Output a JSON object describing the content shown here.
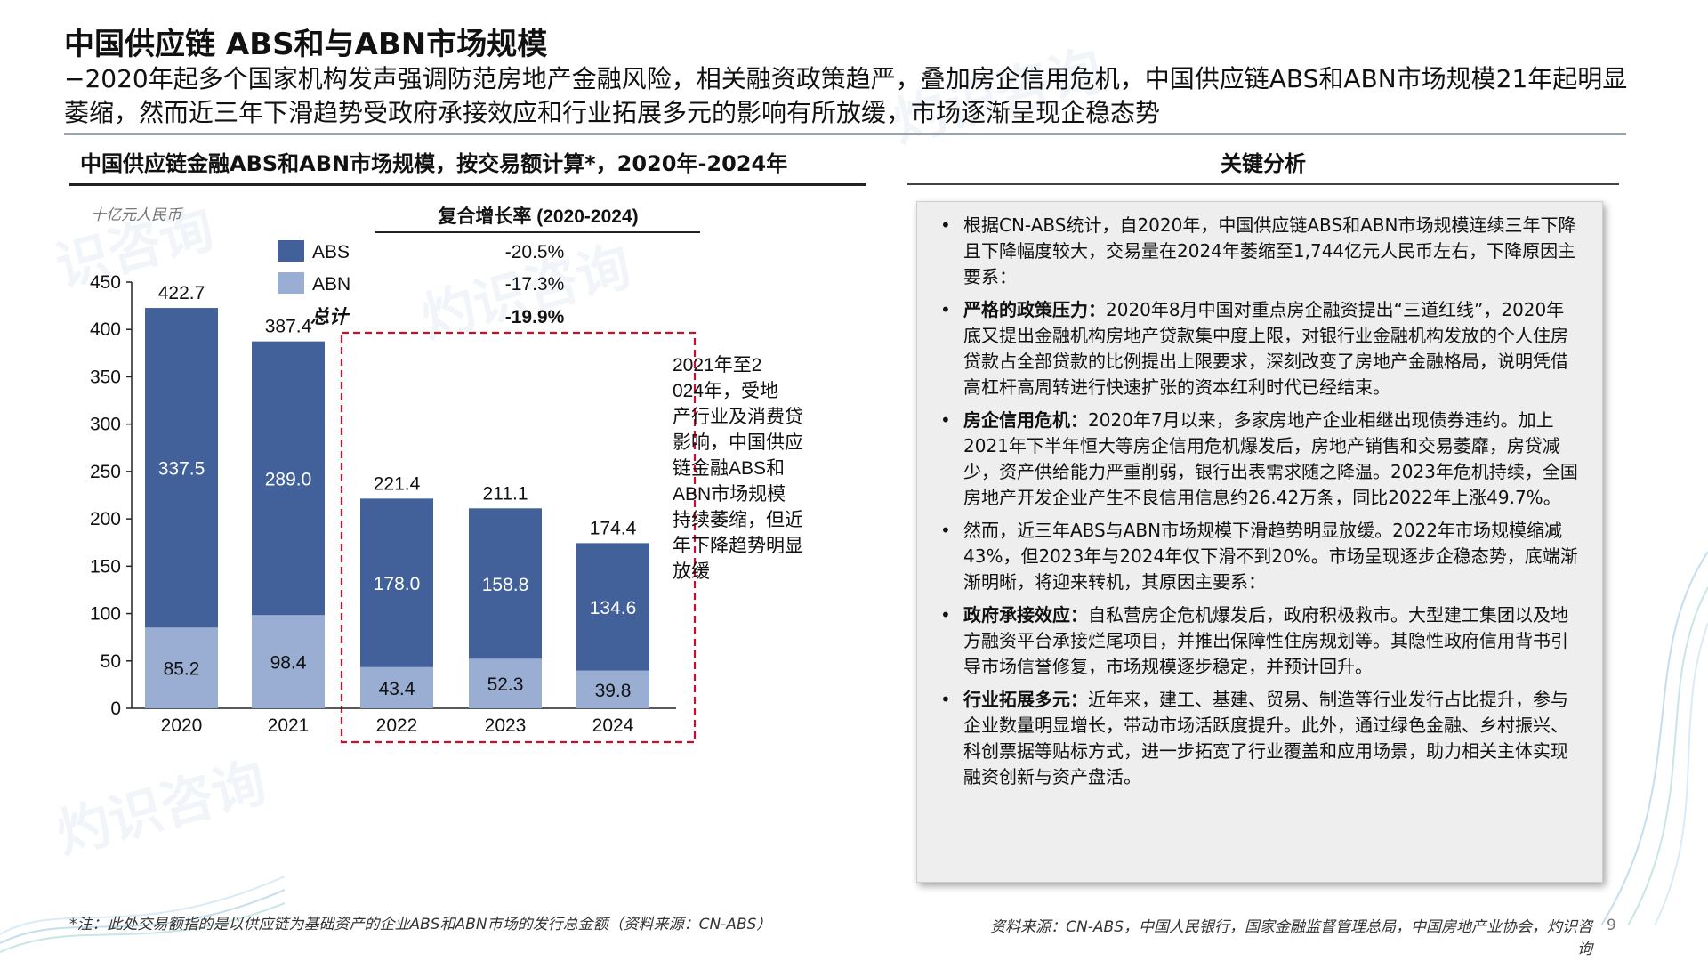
{
  "slide": {
    "title": "中国供应链 ABS和与ABN市场规模",
    "subtitle": "−2020年起多个国家机构发声强调防范房地产金融风险，相关融资政策趋严，叠加房企信用危机，中国供应链ABS和ABN市场规模21年起明显萎缩，然而近三年下滑趋势受政府承接效应和行业拓展多元的影响有所放缓，市场逐渐呈现企稳态势",
    "page_number": "9"
  },
  "colors": {
    "abs": "#42619a",
    "abn": "#9aaed4",
    "highlight_border": "#c8102e",
    "header_rule": "#9aa3ad"
  },
  "chart_panel": {
    "heading": "中国供应链金融ABS和ABN市场规模，按交易额计算*，2020年-2024年",
    "unit": "十亿元人民币",
    "cagr_header": "复合增长率 (2020-2024)",
    "legend": [
      {
        "name": "ABS",
        "cagr": "-20.5%"
      },
      {
        "name": "ABN",
        "cagr": "-17.3%"
      }
    ],
    "total_label": "总计",
    "total_cagr": "-19.9%",
    "annotation": "2021年至2024年，受地产行业及消费贷影响，中国供应链金融ABS和ABN市场规模持续萎缩，但近年下降趋势明显放缓"
  },
  "chart_data": {
    "type": "bar",
    "stacked": true,
    "categories": [
      "2020",
      "2021",
      "2022",
      "2023",
      "2024"
    ],
    "series": [
      {
        "name": "ABN",
        "values": [
          85.2,
          98.4,
          43.4,
          52.3,
          39.8
        ]
      },
      {
        "name": "ABS",
        "values": [
          337.5,
          289.0,
          178.0,
          158.8,
          134.6
        ]
      }
    ],
    "totals": [
      422.7,
      387.4,
      221.4,
      211.1,
      174.4
    ],
    "ylim": [
      0,
      450
    ],
    "yticks": [
      0,
      50,
      100,
      150,
      200,
      250,
      300,
      350,
      400,
      450
    ],
    "ylabel": "十亿元人民币",
    "title": "中国供应链金融ABS和ABN市场规模，按交易额计算*，2020年-2024年",
    "highlight_categories": [
      "2022",
      "2023",
      "2024"
    ]
  },
  "analysis": {
    "heading": "关键分析",
    "items": [
      {
        "label": "",
        "text": "根据CN-ABS统计，自2020年，中国供应链ABS和ABN市场规模连续三年下降且下降幅度较大，交易量在2024年萎缩至1,744亿元人民币左右，下降原因主要系："
      },
      {
        "label": "严格的政策压力：",
        "text": "2020年8月中国对重点房企融资提出“三道红线”，2020年底又提出金融机构房地产贷款集中度上限，对银行业金融机构发放的个人住房贷款占全部贷款的比例提出上限要求，深刻改变了房地产金融格局，说明凭借高杠杆高周转进行快速扩张的资本红利时代已经结束。"
      },
      {
        "label": "房企信用危机：",
        "text": "2020年7月以来，多家房地产企业相继出现债券违约。加上2021年下半年恒大等房企信用危机爆发后，房地产销售和交易萎靡，房贷减少，资产供给能力严重削弱，银行出表需求随之降温。2023年危机持续，全国房地产开发企业产生不良信用信息约26.42万条，同比2022年上涨49.7%。"
      },
      {
        "label": "",
        "text": "然而，近三年ABS与ABN市场规模下滑趋势明显放缓。2022年市场规模缩减43%，但2023年与2024年仅下滑不到20%。市场呈现逐步企稳态势，底端渐渐明晰，将迎来转机，其原因主要系："
      },
      {
        "label": "政府承接效应：",
        "text": "自私营房企危机爆发后，政府积极救市。大型建工集团以及地方融资平台承接烂尾项目，并推出保障性住房规划等。其隐性政府信用背书引导市场信誉修复，市场规模逐步稳定，并预计回升。"
      },
      {
        "label": "行业拓展多元：",
        "text": "近年来，建工、基建、贸易、制造等行业发行占比提升，参与企业数量明显增长，带动市场活跃度提升。此外，通过绿色金融、乡村振兴、科创票据等贴标方式，进一步拓宽了行业覆盖和应用场景，助力相关主体实现融资创新与资产盘活。"
      }
    ]
  },
  "footnote": "*注：此处交易额指的是以供应链为基础资产的企业ABS和ABN市场的发行总金额（资料来源：CN-ABS）",
  "source": "资料来源：CN-ABS，中国人民银行，国家金融监督管理总局，中国房地产业协会，灼识咨询"
}
